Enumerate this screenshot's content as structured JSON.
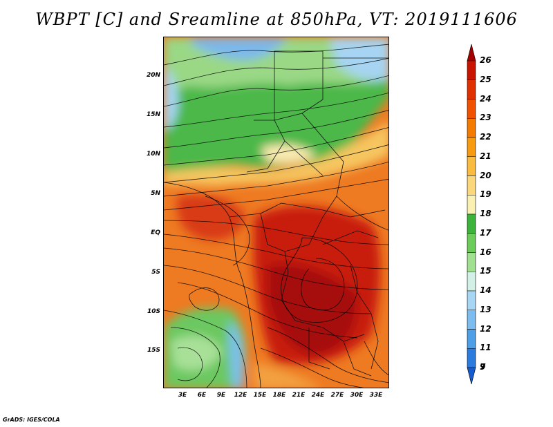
{
  "title": "WBPT [C] and Sreamline at 850hPa, VT: 2019111606",
  "footer": "GrADS: IGES/COLA",
  "map": {
    "lat_labels": [
      "20N",
      "15N",
      "10N",
      "5N",
      "EQ",
      "5S",
      "10S",
      "15S"
    ],
    "lon_labels": [
      "3E",
      "6E",
      "9E",
      "12E",
      "15E",
      "18E",
      "21E",
      "24E",
      "27E",
      "30E",
      "33E"
    ],
    "lat_range": [
      -20,
      25
    ],
    "lon_range": [
      0,
      35
    ]
  },
  "colorbar": {
    "labels": [
      "26",
      "25",
      "24",
      "23",
      "22",
      "21",
      "20",
      "19",
      "18",
      "17",
      "16",
      "15",
      "14",
      "13",
      "12",
      "11",
      "9",
      "7"
    ],
    "colors": [
      "#a50000",
      "#c81400",
      "#e03000",
      "#f05000",
      "#f47a00",
      "#f89a10",
      "#f9bb40",
      "#fad77a",
      "#faf0b4",
      "#3cb43c",
      "#6ccc5a",
      "#a0e090",
      "#d2f0e6",
      "#a6d6f4",
      "#7cbcee",
      "#4e9ee8",
      "#2c7ce0",
      "#145cd0"
    ]
  }
}
